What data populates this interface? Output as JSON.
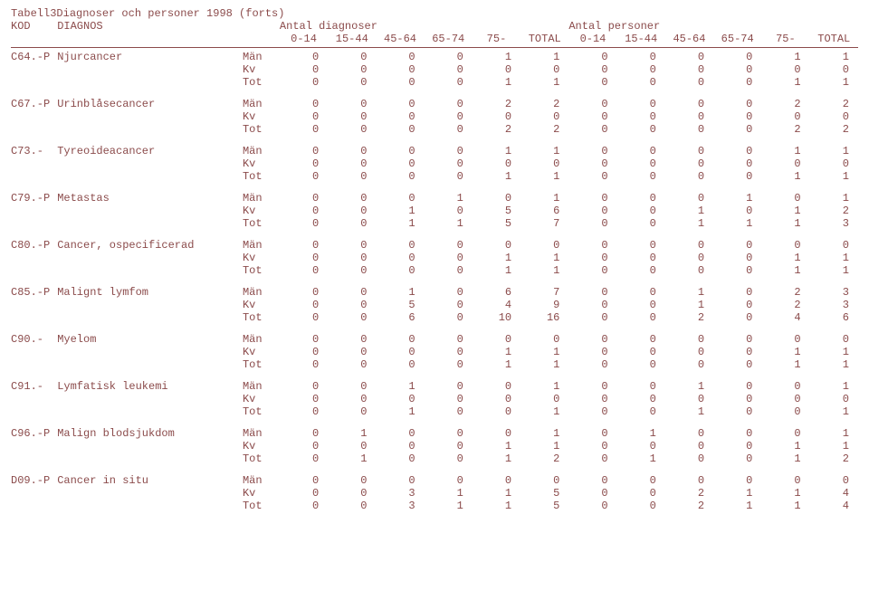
{
  "title_prefix": "Tabell3",
  "title_rest": "Diagnoser och personer 1998 (forts)",
  "header": {
    "kod": "KOD",
    "diagnos": "DIAGNOS",
    "antal_diagnoser": "Antal diagnoser",
    "antal_personer": "Antal personer",
    "cols": [
      "0-14",
      "15-44",
      "45-64",
      "65-74",
      "75-",
      "TOTAL"
    ]
  },
  "group_labels": [
    "Män",
    "Kv",
    "Tot"
  ],
  "rows": [
    {
      "kod": "C64.-P",
      "diagnos": "Njurcancer",
      "groups": [
        {
          "d": [
            0,
            0,
            0,
            0,
            1,
            1
          ],
          "p": [
            0,
            0,
            0,
            0,
            1,
            1
          ]
        },
        {
          "d": [
            0,
            0,
            0,
            0,
            0,
            0
          ],
          "p": [
            0,
            0,
            0,
            0,
            0,
            0
          ]
        },
        {
          "d": [
            0,
            0,
            0,
            0,
            1,
            1
          ],
          "p": [
            0,
            0,
            0,
            0,
            1,
            1
          ]
        }
      ]
    },
    {
      "kod": "C67.-P",
      "diagnos": "Urinblåsecancer",
      "groups": [
        {
          "d": [
            0,
            0,
            0,
            0,
            2,
            2
          ],
          "p": [
            0,
            0,
            0,
            0,
            2,
            2
          ]
        },
        {
          "d": [
            0,
            0,
            0,
            0,
            0,
            0
          ],
          "p": [
            0,
            0,
            0,
            0,
            0,
            0
          ]
        },
        {
          "d": [
            0,
            0,
            0,
            0,
            2,
            2
          ],
          "p": [
            0,
            0,
            0,
            0,
            2,
            2
          ]
        }
      ]
    },
    {
      "kod": "C73.-",
      "diagnos": "Tyreoideacancer",
      "groups": [
        {
          "d": [
            0,
            0,
            0,
            0,
            1,
            1
          ],
          "p": [
            0,
            0,
            0,
            0,
            1,
            1
          ]
        },
        {
          "d": [
            0,
            0,
            0,
            0,
            0,
            0
          ],
          "p": [
            0,
            0,
            0,
            0,
            0,
            0
          ]
        },
        {
          "d": [
            0,
            0,
            0,
            0,
            1,
            1
          ],
          "p": [
            0,
            0,
            0,
            0,
            1,
            1
          ]
        }
      ]
    },
    {
      "kod": "C79.-P",
      "diagnos": "Metastas",
      "groups": [
        {
          "d": [
            0,
            0,
            0,
            1,
            0,
            1
          ],
          "p": [
            0,
            0,
            0,
            1,
            0,
            1
          ]
        },
        {
          "d": [
            0,
            0,
            1,
            0,
            5,
            6
          ],
          "p": [
            0,
            0,
            1,
            0,
            1,
            2
          ]
        },
        {
          "d": [
            0,
            0,
            1,
            1,
            5,
            7
          ],
          "p": [
            0,
            0,
            1,
            1,
            1,
            3
          ]
        }
      ]
    },
    {
      "kod": "C80.-P",
      "diagnos": "Cancer, ospecificerad",
      "groups": [
        {
          "d": [
            0,
            0,
            0,
            0,
            0,
            0
          ],
          "p": [
            0,
            0,
            0,
            0,
            0,
            0
          ]
        },
        {
          "d": [
            0,
            0,
            0,
            0,
            1,
            1
          ],
          "p": [
            0,
            0,
            0,
            0,
            1,
            1
          ]
        },
        {
          "d": [
            0,
            0,
            0,
            0,
            1,
            1
          ],
          "p": [
            0,
            0,
            0,
            0,
            1,
            1
          ]
        }
      ]
    },
    {
      "kod": "C85.-P",
      "diagnos": "Malignt lymfom",
      "groups": [
        {
          "d": [
            0,
            0,
            1,
            0,
            6,
            7
          ],
          "p": [
            0,
            0,
            1,
            0,
            2,
            3
          ]
        },
        {
          "d": [
            0,
            0,
            5,
            0,
            4,
            9
          ],
          "p": [
            0,
            0,
            1,
            0,
            2,
            3
          ]
        },
        {
          "d": [
            0,
            0,
            6,
            0,
            10,
            16
          ],
          "p": [
            0,
            0,
            2,
            0,
            4,
            6
          ]
        }
      ]
    },
    {
      "kod": "C90.-",
      "diagnos": "Myelom",
      "groups": [
        {
          "d": [
            0,
            0,
            0,
            0,
            0,
            0
          ],
          "p": [
            0,
            0,
            0,
            0,
            0,
            0
          ]
        },
        {
          "d": [
            0,
            0,
            0,
            0,
            1,
            1
          ],
          "p": [
            0,
            0,
            0,
            0,
            1,
            1
          ]
        },
        {
          "d": [
            0,
            0,
            0,
            0,
            1,
            1
          ],
          "p": [
            0,
            0,
            0,
            0,
            1,
            1
          ]
        }
      ]
    },
    {
      "kod": "C91.-",
      "diagnos": "Lymfatisk leukemi",
      "groups": [
        {
          "d": [
            0,
            0,
            1,
            0,
            0,
            1
          ],
          "p": [
            0,
            0,
            1,
            0,
            0,
            1
          ]
        },
        {
          "d": [
            0,
            0,
            0,
            0,
            0,
            0
          ],
          "p": [
            0,
            0,
            0,
            0,
            0,
            0
          ]
        },
        {
          "d": [
            0,
            0,
            1,
            0,
            0,
            1
          ],
          "p": [
            0,
            0,
            1,
            0,
            0,
            1
          ]
        }
      ]
    },
    {
      "kod": "C96.-P",
      "diagnos": "Malign blodsjukdom",
      "groups": [
        {
          "d": [
            0,
            1,
            0,
            0,
            0,
            1
          ],
          "p": [
            0,
            1,
            0,
            0,
            0,
            1
          ]
        },
        {
          "d": [
            0,
            0,
            0,
            0,
            1,
            1
          ],
          "p": [
            0,
            0,
            0,
            0,
            1,
            1
          ]
        },
        {
          "d": [
            0,
            1,
            0,
            0,
            1,
            2
          ],
          "p": [
            0,
            1,
            0,
            0,
            1,
            2
          ]
        }
      ]
    },
    {
      "kod": "D09.-P",
      "diagnos": "Cancer in situ",
      "groups": [
        {
          "d": [
            0,
            0,
            0,
            0,
            0,
            0
          ],
          "p": [
            0,
            0,
            0,
            0,
            0,
            0
          ]
        },
        {
          "d": [
            0,
            0,
            3,
            1,
            1,
            5
          ],
          "p": [
            0,
            0,
            2,
            1,
            1,
            4
          ]
        },
        {
          "d": [
            0,
            0,
            3,
            1,
            1,
            5
          ],
          "p": [
            0,
            0,
            2,
            1,
            1,
            4
          ]
        }
      ]
    }
  ],
  "style": {
    "text_color": "#8b4b4b",
    "background_color": "#ffffff",
    "font_family": "Courier New",
    "font_size_pt": 9
  }
}
